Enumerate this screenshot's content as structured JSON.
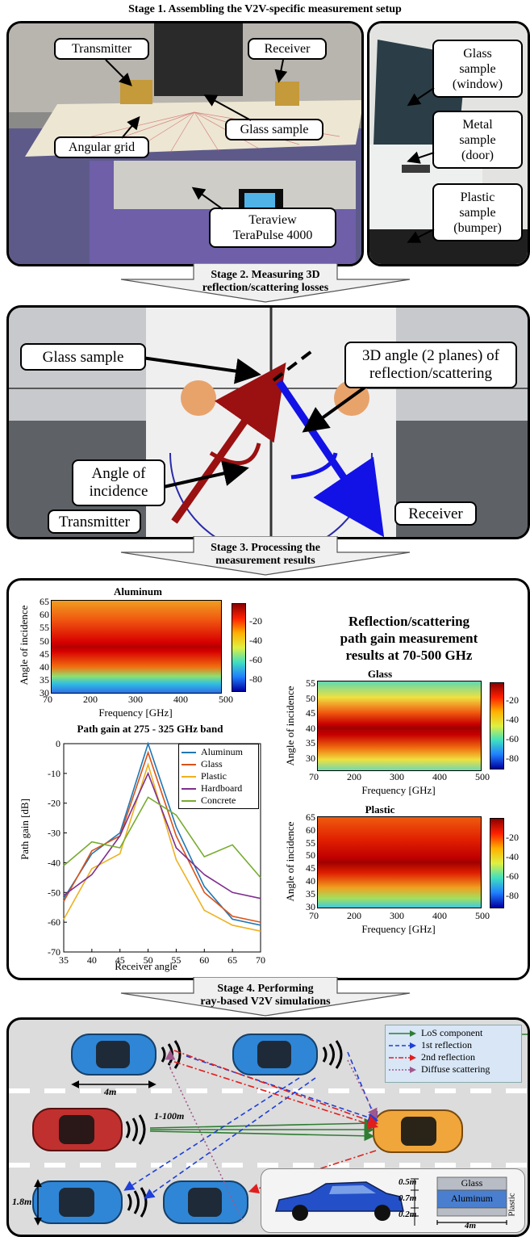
{
  "stage1": {
    "title": "Stage 1. Assembling the V2V-specific measurement setup",
    "labels": {
      "transmitter": "Transmitter",
      "receiver": "Receiver",
      "glass_sample": "Glass sample",
      "angular_grid": "Angular grid",
      "teraview_l1": "Teraview",
      "teraview_l2": "TeraPulse 4000",
      "glass_window_l1": "Glass",
      "glass_window_l2": "sample",
      "glass_window_l3": "(window)",
      "metal_l1": "Metal",
      "metal_l2": "sample",
      "metal_l3": "(door)",
      "plastic_l1": "Plastic",
      "plastic_l2": "sample",
      "plastic_l3": "(bumper)"
    }
  },
  "stage2": {
    "title_l1": "Stage 2. Measuring 3D",
    "title_l2": "reflection/scattering losses",
    "labels": {
      "glass_sample": "Glass sample",
      "angle3d_l1": "3D angle (2 planes) of",
      "angle3d_l2": "reflection/scattering",
      "incidence_l1": "Angle of",
      "incidence_l2": "incidence",
      "transmitter": "Transmitter",
      "receiver": "Receiver"
    }
  },
  "stage3": {
    "title_l1": "Stage 3. Processing the",
    "title_l2": "measurement results",
    "main_title_l1": "Reflection/scattering",
    "main_title_l2": "path gain measurement",
    "main_title_l3": "results at 70-500 GHz",
    "heatmaps": [
      {
        "title": "Aluminum",
        "ylabel": "Angle of incidence",
        "xlabel": "Frequency [GHz]",
        "xticks": [
          "70",
          "200",
          "300",
          "400",
          "500"
        ],
        "yticks": [
          "65",
          "60",
          "55",
          "50",
          "45",
          "40",
          "35",
          "30"
        ],
        "cbar_ticks": [
          "-20",
          "-40",
          "-60",
          "-80"
        ]
      },
      {
        "title": "Glass",
        "ylabel": "Angle of incidence",
        "xlabel": "Frequency [GHz]",
        "xticks": [
          "70",
          "200",
          "300",
          "400",
          "500"
        ],
        "yticks": [
          "55",
          "50",
          "45",
          "40",
          "35",
          "30"
        ],
        "cbar_ticks": [
          "-20",
          "-40",
          "-60",
          "-80"
        ]
      },
      {
        "title": "Plastic",
        "ylabel": "Angle of incidence",
        "xlabel": "Frequency [GHz]",
        "xticks": [
          "70",
          "200",
          "300",
          "400",
          "500"
        ],
        "yticks": [
          "65",
          "60",
          "55",
          "50",
          "45",
          "40",
          "35",
          "30"
        ],
        "cbar_ticks": [
          "-20",
          "-40",
          "-60",
          "-80"
        ]
      }
    ],
    "colors": {
      "aluminum": "#1f77b4",
      "glass": "#d95319",
      "plastic": "#edb120",
      "hardboard": "#7e2f8e",
      "concrete": "#77ac30"
    }
  },
  "chart_data": {
    "type": "line",
    "title": "Path gain at 275 - 325 GHz band",
    "xlabel": "Receiver angle",
    "ylabel": "Path gain [dB]",
    "x": [
      35,
      40,
      45,
      50,
      55,
      60,
      65,
      70
    ],
    "xlim": [
      35,
      70
    ],
    "ylim": [
      -70,
      0
    ],
    "xticks": [
      "35",
      "40",
      "45",
      "50",
      "55",
      "60",
      "65",
      "70"
    ],
    "yticks": [
      "0",
      "-10",
      "-20",
      "-30",
      "-40",
      "-50",
      "-60",
      "-70"
    ],
    "legend_position": "top-right",
    "series": [
      {
        "name": "Aluminum",
        "values": [
          -52,
          -37,
          -30,
          0,
          -28,
          -48,
          -59,
          -61
        ]
      },
      {
        "name": "Glass",
        "values": [
          -53,
          -36,
          -31,
          -3,
          -31,
          -50,
          -58,
          -60
        ]
      },
      {
        "name": "Plastic",
        "values": [
          -59,
          -42,
          -37,
          -7,
          -39,
          -56,
          -61,
          -63
        ]
      },
      {
        "name": "Hardboard",
        "values": [
          -51,
          -44,
          -31,
          -10,
          -35,
          -44,
          -50,
          -52
        ]
      },
      {
        "name": "Concrete",
        "values": [
          -41,
          -33,
          -35,
          -18,
          -24,
          -38,
          -34,
          -45
        ]
      }
    ]
  },
  "stage4": {
    "title_l1": "Stage 4. Performing",
    "title_l2": "ray-based V2V simulations",
    "legend": {
      "los": "LoS component",
      "first": "1st reflection",
      "second": "2nd reflection",
      "diffuse": "Diffuse scattering"
    },
    "dims": {
      "car_len": "4m",
      "distance": "1-100m",
      "height": "1.8m",
      "glass_h": "0.5m",
      "alu_h": "0.7m",
      "plastic_h": "0.2m",
      "len2": "4m"
    },
    "materials": {
      "glass": "Glass",
      "aluminum": "Aluminum",
      "plastic": "Plastic"
    },
    "colors": {
      "los": "#2e7d32",
      "first": "#1e3fd8",
      "second": "#e01e1e",
      "diffuse": "#a0588c",
      "car_blue": "#2f86d6",
      "car_red": "#c0302e",
      "car_orange": "#f0a63a"
    }
  }
}
